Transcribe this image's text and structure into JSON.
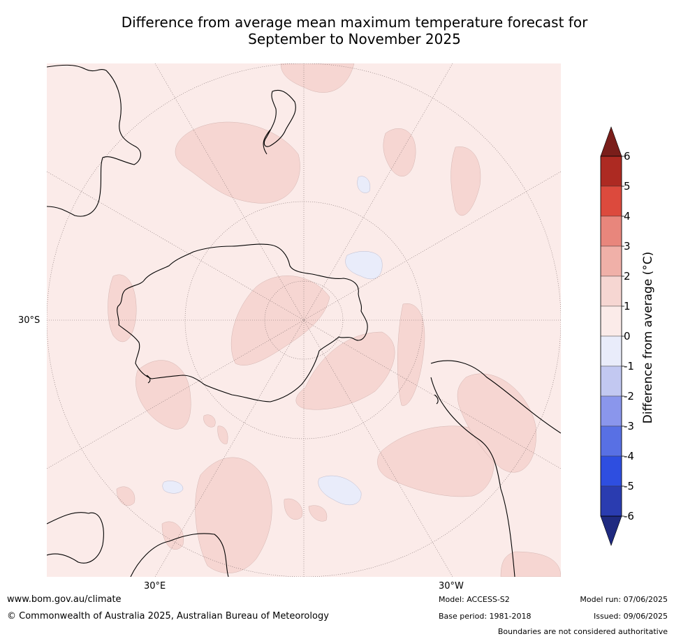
{
  "title_line1": "Difference from average mean maximum temperature forecast for",
  "title_line2": "September to November 2025",
  "axis_labels": {
    "left_lat": "30°S",
    "bottom_left_lon": "30°E",
    "bottom_right_lon": "30°W"
  },
  "colorbar": {
    "title": "Difference from average (°C)",
    "ticks": [
      "6",
      "5",
      "4",
      "3",
      "2",
      "1",
      "0",
      "-1",
      "-2",
      "-3",
      "-4",
      "-5",
      "-6"
    ],
    "colors": [
      "#7a1e1a",
      "#ad2a22",
      "#dc4a3d",
      "#e8867c",
      "#f0b0a8",
      "#f6d6d2",
      "#fbebe9",
      "#e9ecfa",
      "#c2c8f1",
      "#8a96ec",
      "#5870e4",
      "#2e4ee0",
      "#2a3cb0",
      "#1f2a80"
    ]
  },
  "footer": {
    "website": "www.bom.gov.au/climate",
    "copyright": "© Commonwealth of Australia 2025, Australian Bureau of Meteorology",
    "model": "Model: ACCESS-S2",
    "base_period": "Base period: 1981-2018",
    "model_run": "Model run: 07/06/2025",
    "issued": "Issued: 09/06/2025",
    "disclaimer": "Boundaries are not considered authoritative"
  }
}
